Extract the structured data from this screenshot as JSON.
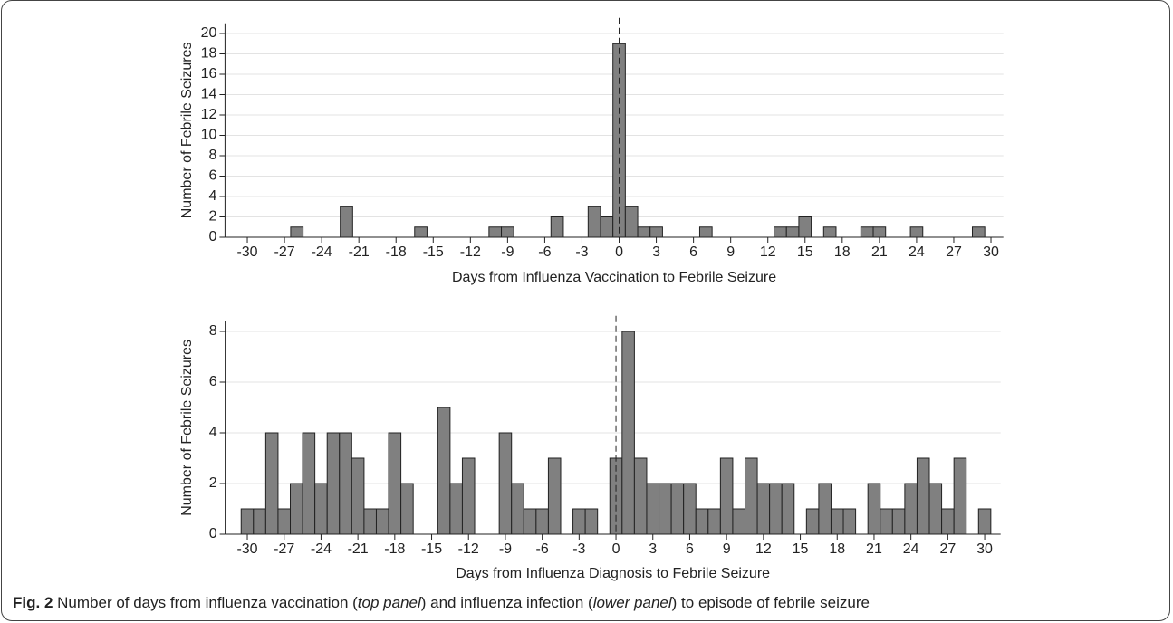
{
  "chart_data": [
    {
      "type": "histogram",
      "ylabel": "Number of Febrile Seizures",
      "xlabel": "Days from Influenza Vaccination to Febrile Seizure",
      "bins": [
        -30.5,
        -29.5,
        -28.5,
        -27.5,
        -26.5,
        -25.5,
        -24.5,
        -23.5,
        -22.5,
        -21.5,
        -20.5,
        -19.5,
        -18.5,
        -17.5,
        -16.5,
        -15.5,
        -14.5,
        -13.5,
        -12.5,
        -11.5,
        -10.5,
        -9.5,
        -8.5,
        -7.5,
        -6.5,
        -5.5,
        -4.5,
        -3.5,
        -2.5,
        -1.5,
        -0.5,
        0.5,
        1.5,
        2.5,
        3.5,
        4.5,
        5.5,
        6.5,
        7.5,
        8.5,
        9.5,
        10.5,
        11.5,
        12.5,
        13.5,
        14.5,
        15.5,
        16.5,
        17.5,
        18.5,
        19.5,
        20.5,
        21.5,
        22.5,
        23.5,
        24.5,
        25.5,
        26.5,
        27.5,
        28.5,
        29.5,
        30.5
      ],
      "counts": [
        0,
        0,
        0,
        0,
        1,
        0,
        0,
        0,
        3,
        0,
        0,
        0,
        0,
        0,
        1,
        0,
        0,
        0,
        0,
        0,
        1,
        1,
        0,
        0,
        0,
        2,
        0,
        0,
        3,
        2,
        19,
        3,
        1,
        1,
        0,
        0,
        0,
        1,
        0,
        0,
        0,
        0,
        0,
        1,
        1,
        2,
        0,
        1,
        0,
        0,
        1,
        1,
        0,
        0,
        1,
        0,
        0,
        0,
        0,
        1,
        0
      ],
      "color": "#808080",
      "vline": 0,
      "xlim": [
        -31.8,
        31
      ],
      "xticks": [
        -30,
        -27,
        -24,
        -21,
        -18,
        -15,
        -12,
        -9,
        -6,
        -3,
        0,
        3,
        6,
        9,
        12,
        15,
        18,
        21,
        24,
        27,
        30
      ],
      "ylim": [
        0,
        21
      ],
      "yticks": [
        0,
        2,
        4,
        6,
        8,
        10,
        12,
        14,
        16,
        18,
        20
      ],
      "grid": true
    },
    {
      "type": "histogram",
      "ylabel": "Number of Febrile Seizures",
      "xlabel": "Days from Influenza Diagnosis to Febrile Seizure",
      "bins": [
        -30.5,
        -29.5,
        -28.5,
        -27.5,
        -26.5,
        -25.5,
        -24.5,
        -23.5,
        -22.5,
        -21.5,
        -20.5,
        -19.5,
        -18.5,
        -17.5,
        -16.5,
        -15.5,
        -14.5,
        -13.5,
        -12.5,
        -11.5,
        -10.5,
        -9.5,
        -8.5,
        -7.5,
        -6.5,
        -5.5,
        -4.5,
        -3.5,
        -2.5,
        -1.5,
        -0.5,
        0.5,
        1.5,
        2.5,
        3.5,
        4.5,
        5.5,
        6.5,
        7.5,
        8.5,
        9.5,
        10.5,
        11.5,
        12.5,
        13.5,
        14.5,
        15.5,
        16.5,
        17.5,
        18.5,
        19.5,
        20.5,
        21.5,
        22.5,
        23.5,
        24.5,
        25.5,
        26.5,
        27.5,
        28.5,
        29.5,
        30.5
      ],
      "counts": [
        1,
        1,
        4,
        1,
        2,
        4,
        2,
        4,
        4,
        3,
        1,
        1,
        4,
        2,
        0,
        0,
        5,
        2,
        3,
        0,
        0,
        4,
        2,
        1,
        1,
        3,
        0,
        1,
        1,
        0,
        3,
        8,
        3,
        2,
        2,
        2,
        2,
        1,
        1,
        3,
        1,
        3,
        2,
        2,
        2,
        0,
        1,
        2,
        1,
        1,
        0,
        2,
        1,
        1,
        2,
        3,
        2,
        1,
        3,
        0,
        1
      ],
      "color": "#808080",
      "vline": 0,
      "xlim": [
        -31.8,
        31.3
      ],
      "xticks": [
        -30,
        -27,
        -24,
        -21,
        -18,
        -15,
        -12,
        -9,
        -6,
        -3,
        0,
        3,
        6,
        9,
        12,
        15,
        18,
        21,
        24,
        27,
        30
      ],
      "ylim": [
        0,
        8.4
      ],
      "yticks": [
        0,
        2,
        4,
        6,
        8
      ],
      "grid": true
    }
  ],
  "caption": {
    "label": "Fig. 2",
    "text1": "Number of days from influenza vaccination (",
    "em1": "top panel",
    "text2": ") and influenza infection (",
    "em2": "lower panel",
    "text3": ") to episode of febrile seizure"
  }
}
